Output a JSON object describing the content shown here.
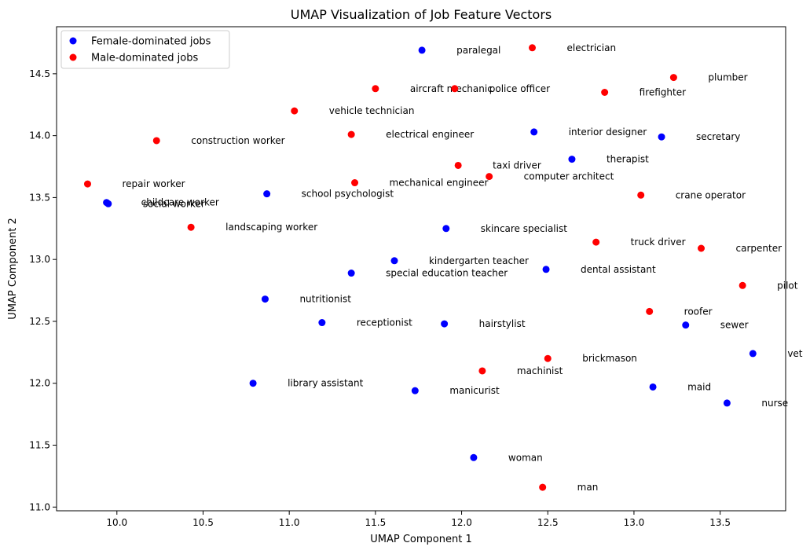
{
  "chart_data": {
    "type": "scatter",
    "title": "UMAP Visualization of Job Feature Vectors",
    "xlabel": "UMAP Component 1",
    "ylabel": "UMAP Component 2",
    "xlim": [
      9.65,
      13.88
    ],
    "ylim": [
      10.97,
      14.88
    ],
    "xticks": [
      10.0,
      10.5,
      11.0,
      11.5,
      12.0,
      12.5,
      13.0,
      13.5
    ],
    "xtick_labels": [
      "10.0",
      "10.5",
      "11.0",
      "11.5",
      "12.0",
      "12.5",
      "13.0",
      "13.5"
    ],
    "yticks": [
      11.0,
      11.5,
      12.0,
      12.5,
      13.0,
      13.5,
      14.0,
      14.5
    ],
    "ytick_labels": [
      "11.0",
      "11.5",
      "12.0",
      "12.5",
      "13.0",
      "13.5",
      "14.0",
      "14.5"
    ],
    "grid": false,
    "legend_position": "top-left",
    "series": [
      {
        "name": "Female-dominated jobs",
        "color": "#0000ff",
        "points": [
          {
            "label": "paralegal",
            "x": 11.77,
            "y": 14.69
          },
          {
            "label": "interior designer",
            "x": 12.42,
            "y": 14.03
          },
          {
            "label": "secretary",
            "x": 13.16,
            "y": 13.99
          },
          {
            "label": "therapist",
            "x": 12.64,
            "y": 13.81
          },
          {
            "label": "childcare worker",
            "x": 9.94,
            "y": 13.46
          },
          {
            "label": "social worker",
            "x": 9.95,
            "y": 13.45
          },
          {
            "label": "school psychologist",
            "x": 10.87,
            "y": 13.53
          },
          {
            "label": "skincare specialist",
            "x": 11.91,
            "y": 13.25
          },
          {
            "label": "kindergarten teacher",
            "x": 11.61,
            "y": 12.99
          },
          {
            "label": "special education teacher",
            "x": 11.36,
            "y": 12.89
          },
          {
            "label": "dental assistant",
            "x": 12.49,
            "y": 12.92
          },
          {
            "label": "nutritionist",
            "x": 10.86,
            "y": 12.68
          },
          {
            "label": "receptionist",
            "x": 11.19,
            "y": 12.49
          },
          {
            "label": "hairstylist",
            "x": 11.9,
            "y": 12.48
          },
          {
            "label": "sewer",
            "x": 13.3,
            "y": 12.47
          },
          {
            "label": "vet",
            "x": 13.69,
            "y": 12.24
          },
          {
            "label": "library assistant",
            "x": 10.79,
            "y": 12.0
          },
          {
            "label": "manicurist",
            "x": 11.73,
            "y": 11.94
          },
          {
            "label": "maid",
            "x": 13.11,
            "y": 11.97
          },
          {
            "label": "nurse",
            "x": 13.54,
            "y": 11.84
          },
          {
            "label": "woman",
            "x": 12.07,
            "y": 11.4
          }
        ]
      },
      {
        "name": "Male-dominated jobs",
        "color": "#ff0000",
        "points": [
          {
            "label": "electrician",
            "x": 12.41,
            "y": 14.71
          },
          {
            "label": "plumber",
            "x": 13.23,
            "y": 14.47
          },
          {
            "label": "aircraft mechanic",
            "x": 11.5,
            "y": 14.38
          },
          {
            "label": "police officer",
            "x": 11.96,
            "y": 14.38
          },
          {
            "label": "firefighter",
            "x": 12.83,
            "y": 14.35
          },
          {
            "label": "vehicle technician",
            "x": 11.03,
            "y": 14.2
          },
          {
            "label": "construction worker",
            "x": 10.23,
            "y": 13.96
          },
          {
            "label": "electrical engineer",
            "x": 11.36,
            "y": 14.01
          },
          {
            "label": "taxi driver",
            "x": 11.98,
            "y": 13.76
          },
          {
            "label": "computer architect",
            "x": 12.16,
            "y": 13.67
          },
          {
            "label": "mechanical engineer",
            "x": 11.38,
            "y": 13.62
          },
          {
            "label": "repair worker",
            "x": 9.83,
            "y": 13.61
          },
          {
            "label": "crane operator",
            "x": 13.04,
            "y": 13.52
          },
          {
            "label": "landscaping worker",
            "x": 10.43,
            "y": 13.26
          },
          {
            "label": "truck driver",
            "x": 12.78,
            "y": 13.14
          },
          {
            "label": "carpenter",
            "x": 13.39,
            "y": 13.09
          },
          {
            "label": "pilot",
            "x": 13.63,
            "y": 12.79
          },
          {
            "label": "roofer",
            "x": 13.09,
            "y": 12.58
          },
          {
            "label": "brickmason",
            "x": 12.5,
            "y": 12.2
          },
          {
            "label": "machinist",
            "x": 12.12,
            "y": 12.1
          },
          {
            "label": "man",
            "x": 12.47,
            "y": 11.16
          }
        ]
      }
    ]
  }
}
